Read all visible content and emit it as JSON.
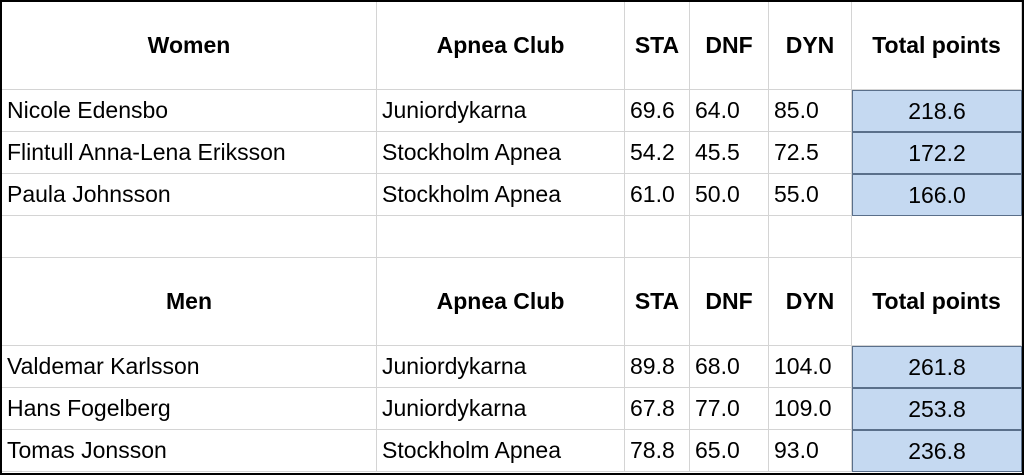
{
  "sections": [
    {
      "header": [
        "Women",
        "Apnea Club",
        "STA",
        "DNF",
        "DYN",
        "Total points"
      ],
      "rows": [
        [
          "Nicole Edensbo",
          "Juniordykarna",
          "69.6",
          "64.0",
          "85.0",
          "218.6"
        ],
        [
          "Flintull Anna-Lena Eriksson",
          "Stockholm Apnea",
          "54.2",
          "45.5",
          "72.5",
          "172.2"
        ],
        [
          "Paula Johnsson",
          "Stockholm Apnea",
          "61.0",
          "50.0",
          "55.0",
          "166.0"
        ]
      ]
    },
    {
      "header": [
        "Men",
        "Apnea Club",
        "STA",
        "DNF",
        "DYN",
        "Total points"
      ],
      "rows": [
        [
          "Valdemar Karlsson",
          "Juniordykarna",
          "89.8",
          "68.0",
          "104.0",
          "261.8"
        ],
        [
          "Hans Fogelberg",
          "Juniordykarna",
          "67.8",
          "77.0",
          "109.0",
          "253.8"
        ],
        [
          "Tomas Jonsson",
          "Stockholm Apnea",
          "78.8",
          "65.0",
          "93.0",
          "236.8"
        ]
      ]
    }
  ]
}
